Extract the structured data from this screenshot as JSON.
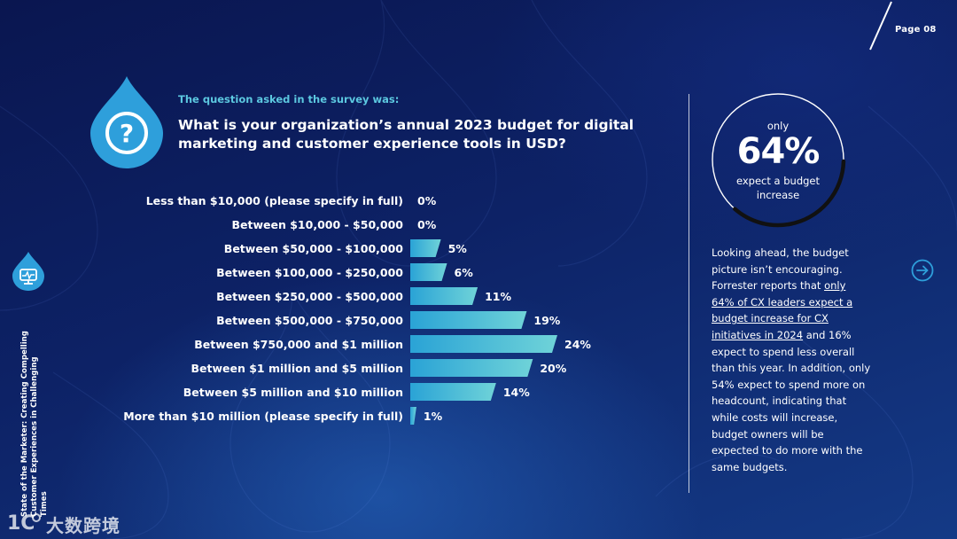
{
  "page": {
    "label": "Page 08"
  },
  "sidebar": {
    "title_line1": "State of the Marketer: Creating Compelling",
    "title_line2": "Customer Experiences in Challenging Times"
  },
  "question": {
    "intro": "The question asked in the survey was:",
    "text": "What is your organization’s annual 2023 budget for digital marketing and customer experience tools in USD?"
  },
  "chart_data": {
    "type": "bar",
    "orientation": "horizontal",
    "title": "",
    "categories": [
      "Less than $10,000 (please specify in full)",
      "Between $10,000 - $50,000",
      "Between $50,000 - $100,000",
      "Between $100,000 - $250,000",
      "Between $250,000 - $500,000",
      "Between $500,000 - $750,000",
      "Between $750,000 and $1 million",
      "Between $1 million and $5 million",
      "Between $5 million and $10 million",
      "More than $10 million (please specify in full)"
    ],
    "values": [
      0,
      0,
      5,
      6,
      11,
      19,
      24,
      20,
      14,
      1
    ],
    "value_labels": [
      "0%",
      "0%",
      "5%",
      "6%",
      "11%",
      "19%",
      "24%",
      "20%",
      "14%",
      "1%"
    ],
    "unit": "%",
    "xlim": [
      0,
      24
    ],
    "colors": {
      "bar_start": "#2aa3d6",
      "bar_end": "#6fd3d8"
    }
  },
  "stat": {
    "top": "only",
    "value": "64%",
    "bottom": "expect a budget increase",
    "progress": 0.64
  },
  "paragraph": {
    "before_link": "Looking ahead, the budget picture isn’t encouraging. Forrester reports that ",
    "link": "only 64% of CX leaders expect a budget increase for CX initiatives in 2024",
    "after_link": " and 16% expect to spend less overall than this year. In addition, only 54% expect to spend more on headcount, indicating that while costs will increase, budget owners will be expected to do more with the same budgets."
  },
  "watermark": {
    "text": "大数跨境"
  },
  "colors": {
    "accent": "#2e9fdb",
    "accent_light": "#5cc8e0",
    "bg_dark": "#0a1650"
  }
}
